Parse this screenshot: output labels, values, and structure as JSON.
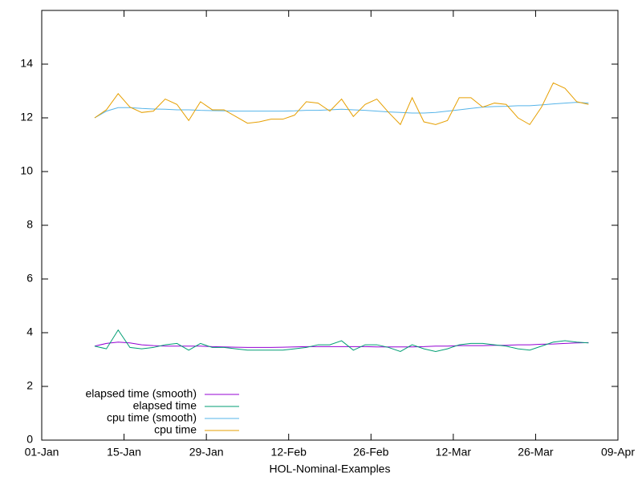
{
  "chart_data": {
    "type": "line",
    "x_label": "HOL-Nominal-Examples",
    "xlim": [
      "01-Jan",
      "09-Apr"
    ],
    "xticks": [
      "01-Jan",
      "15-Jan",
      "29-Jan",
      "12-Feb",
      "26-Feb",
      "12-Mar",
      "26-Mar",
      "09-Apr"
    ],
    "ylim": [
      0,
      16
    ],
    "yticks": [
      0,
      2,
      4,
      6,
      8,
      10,
      12,
      14
    ],
    "legend": "bottom left",
    "x": [
      "10-Jan",
      "12-Jan",
      "14-Jan",
      "16-Jan",
      "18-Jan",
      "20-Jan",
      "22-Jan",
      "24-Jan",
      "26-Jan",
      "28-Jan",
      "30-Jan",
      "01-Feb",
      "03-Feb",
      "05-Feb",
      "07-Feb",
      "09-Feb",
      "11-Feb",
      "13-Feb",
      "15-Feb",
      "17-Feb",
      "19-Feb",
      "21-Feb",
      "23-Feb",
      "25-Feb",
      "27-Feb",
      "01-Mar",
      "03-Mar",
      "05-Mar",
      "07-Mar",
      "09-Mar",
      "11-Mar",
      "13-Mar",
      "15-Mar",
      "17-Mar",
      "19-Mar",
      "21-Mar",
      "23-Mar",
      "25-Mar",
      "27-Mar",
      "29-Mar",
      "31-Mar",
      "02-Apr",
      "04-Apr"
    ],
    "series": [
      {
        "name": "elapsed time (smooth)",
        "color": "#9400d3",
        "values": [
          3.5,
          3.6,
          3.65,
          3.62,
          3.55,
          3.52,
          3.5,
          3.5,
          3.5,
          3.5,
          3.48,
          3.47,
          3.46,
          3.45,
          3.45,
          3.45,
          3.46,
          3.47,
          3.48,
          3.48,
          3.48,
          3.48,
          3.48,
          3.48,
          3.47,
          3.47,
          3.47,
          3.47,
          3.48,
          3.5,
          3.5,
          3.52,
          3.52,
          3.52,
          3.53,
          3.53,
          3.55,
          3.55,
          3.57,
          3.58,
          3.6,
          3.62,
          3.63
        ]
      },
      {
        "name": "elapsed time",
        "color": "#009e73",
        "values": [
          3.5,
          3.4,
          4.1,
          3.45,
          3.4,
          3.45,
          3.55,
          3.6,
          3.35,
          3.6,
          3.45,
          3.45,
          3.4,
          3.35,
          3.35,
          3.35,
          3.35,
          3.4,
          3.45,
          3.55,
          3.55,
          3.7,
          3.35,
          3.55,
          3.55,
          3.45,
          3.3,
          3.55,
          3.4,
          3.3,
          3.4,
          3.55,
          3.6,
          3.6,
          3.55,
          3.5,
          3.4,
          3.35,
          3.5,
          3.65,
          3.7,
          3.65,
          3.62
        ]
      },
      {
        "name": "cpu time (smooth)",
        "color": "#56b4e9",
        "values": [
          12.0,
          12.25,
          12.38,
          12.38,
          12.35,
          12.33,
          12.32,
          12.3,
          12.3,
          12.28,
          12.27,
          12.26,
          12.25,
          12.25,
          12.25,
          12.25,
          12.25,
          12.26,
          12.28,
          12.28,
          12.3,
          12.32,
          12.3,
          12.28,
          12.25,
          12.22,
          12.2,
          12.18,
          12.18,
          12.2,
          12.25,
          12.3,
          12.35,
          12.4,
          12.42,
          12.43,
          12.45,
          12.45,
          12.48,
          12.52,
          12.55,
          12.58,
          12.55
        ]
      },
      {
        "name": "cpu time",
        "color": "#e69f00",
        "values": [
          12.0,
          12.3,
          12.9,
          12.4,
          12.2,
          12.25,
          12.7,
          12.5,
          11.9,
          12.6,
          12.3,
          12.3,
          12.05,
          11.8,
          11.85,
          11.95,
          11.95,
          12.1,
          12.6,
          12.55,
          12.25,
          12.7,
          12.05,
          12.5,
          12.7,
          12.2,
          11.75,
          12.75,
          11.85,
          11.75,
          11.9,
          12.75,
          12.75,
          12.4,
          12.55,
          12.5,
          12.0,
          11.75,
          12.4,
          13.3,
          13.1,
          12.6,
          12.5
        ]
      }
    ]
  }
}
